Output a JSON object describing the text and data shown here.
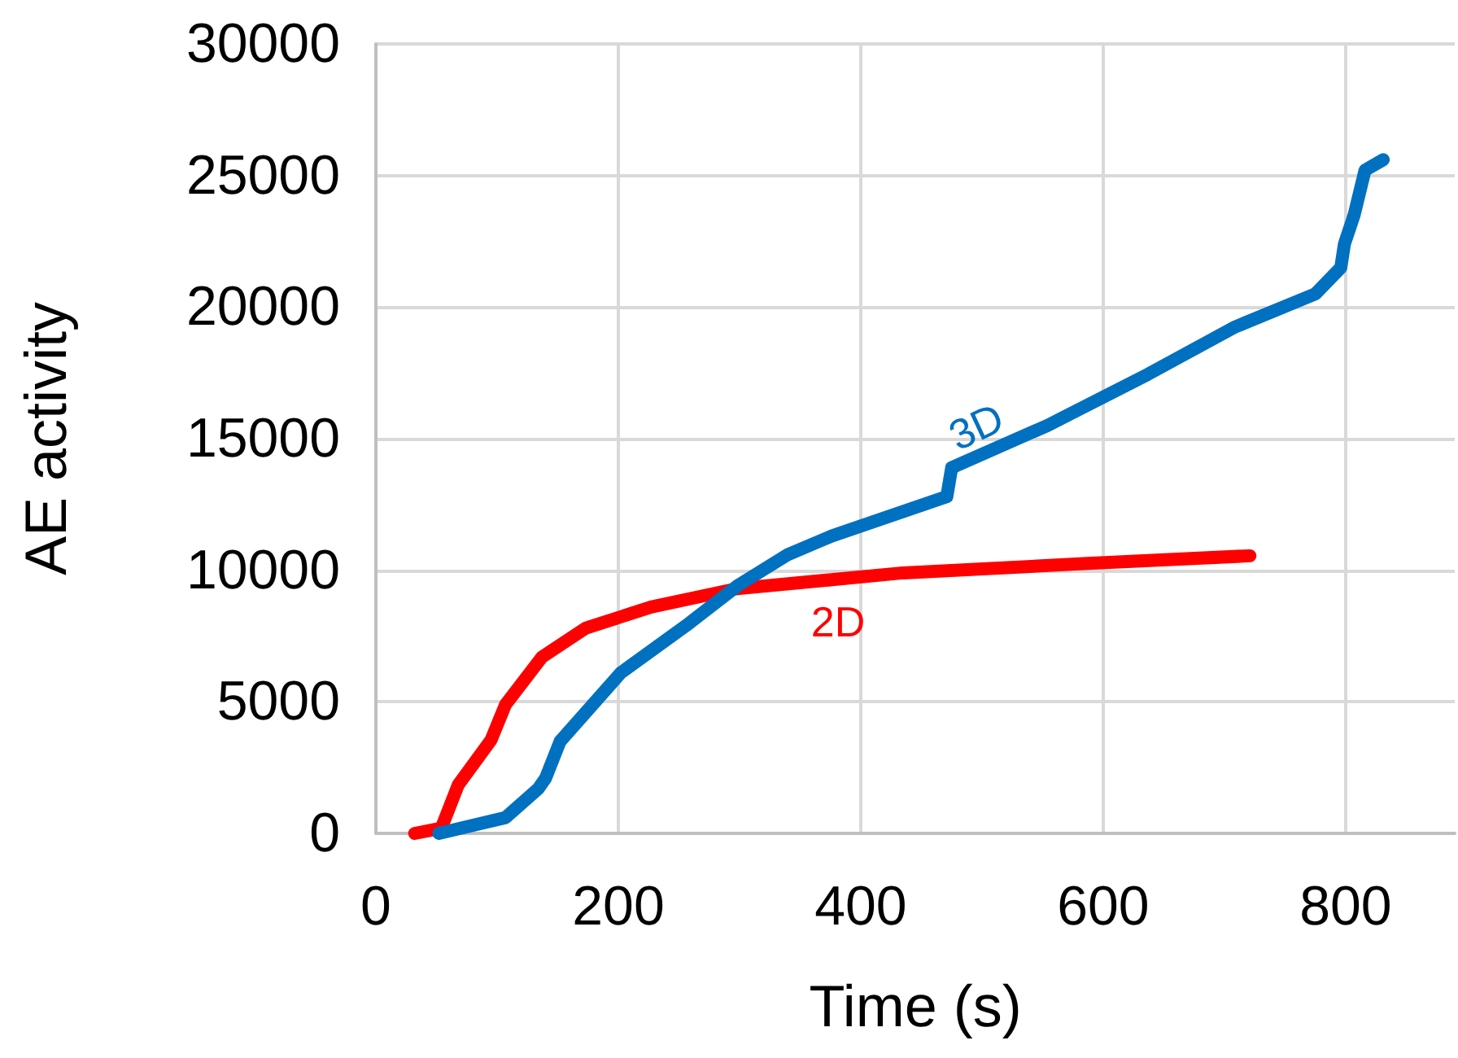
{
  "chart_data": {
    "type": "line",
    "xlabel": "Time (s)",
    "ylabel": "AE activity",
    "xlim": [
      0,
      890
    ],
    "xticks": [
      0,
      200,
      400,
      600,
      800
    ],
    "ylim": [
      0,
      30000
    ],
    "yticks": [
      0,
      5000,
      10000,
      15000,
      20000,
      25000,
      30000
    ],
    "grid": true,
    "legend": false,
    "marker": "none",
    "line_style": "solid",
    "series": [
      {
        "name": "3D",
        "color": "#0070c0",
        "x": [
          52,
          107,
          134,
          140,
          152,
          202,
          256,
          298,
          340,
          376,
          471,
          475,
          554,
          637,
          709,
          775,
          796,
          799,
          807,
          816,
          831
        ],
        "values": [
          0,
          600,
          1700,
          2100,
          3500,
          6100,
          7900,
          9400,
          10600,
          11300,
          12800,
          13900,
          15500,
          17450,
          19250,
          20500,
          21500,
          22400,
          23500,
          25200,
          25600
        ]
      },
      {
        "name": "2D",
        "color": "#ff0000",
        "x": [
          32,
          54,
          68,
          95,
          107,
          137,
          173,
          227,
          298,
          435,
          584,
          721
        ],
        "values": [
          0,
          200,
          1850,
          3550,
          4900,
          6700,
          7800,
          8600,
          9300,
          9900,
          10250,
          10550
        ]
      }
    ]
  }
}
